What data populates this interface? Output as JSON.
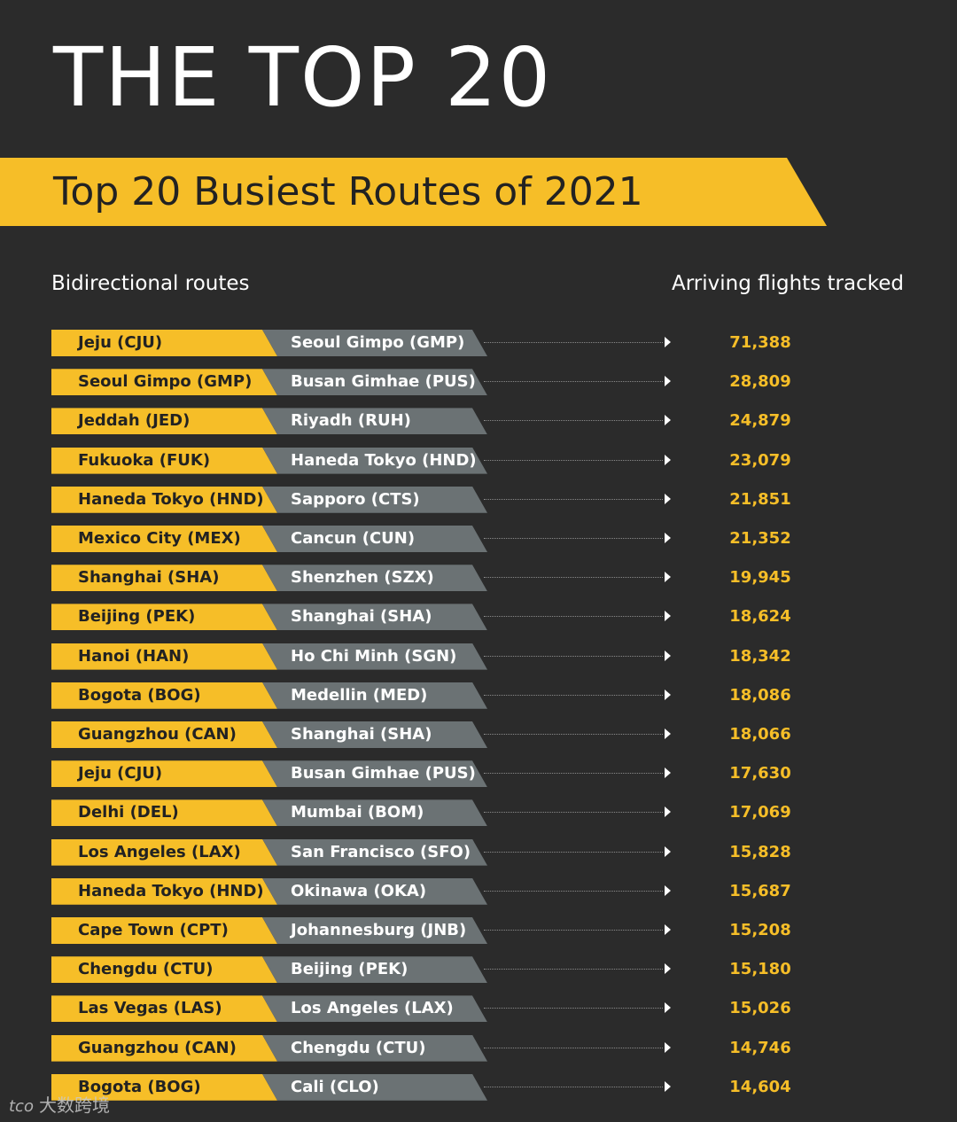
{
  "header": {
    "title": "THE TOP 20",
    "subtitle": "Top 20 Busiest Routes of 2021"
  },
  "columns": {
    "routes_label": "Bidirectional routes",
    "value_label": "Arriving flights tracked"
  },
  "colors": {
    "background": "#2b2b2b",
    "accent_yellow": "#f6be28",
    "destination_grey": "#6b7274",
    "text_white": "#ffffff"
  },
  "chart_data": {
    "type": "table",
    "title": "Top 20 Busiest Routes of 2021",
    "columns": [
      "Bidirectional routes",
      "Arriving flights tracked"
    ],
    "rows": [
      {
        "from": "Jeju (CJU)",
        "to": "Seoul Gimpo (GMP)",
        "flights": "71,388"
      },
      {
        "from": "Seoul Gimpo (GMP)",
        "to": "Busan Gimhae (PUS)",
        "flights": "28,809"
      },
      {
        "from": "Jeddah (JED)",
        "to": "Riyadh (RUH)",
        "flights": "24,879"
      },
      {
        "from": "Fukuoka (FUK)",
        "to": "Haneda Tokyo (HND)",
        "flights": "23,079"
      },
      {
        "from": "Haneda Tokyo (HND)",
        "to": "Sapporo (CTS)",
        "flights": "21,851"
      },
      {
        "from": "Mexico City (MEX)",
        "to": "Cancun (CUN)",
        "flights": "21,352"
      },
      {
        "from": "Shanghai (SHA)",
        "to": "Shenzhen (SZX)",
        "flights": "19,945"
      },
      {
        "from": "Beijing (PEK)",
        "to": "Shanghai (SHA)",
        "flights": "18,624"
      },
      {
        "from": "Hanoi (HAN)",
        "to": "Ho Chi Minh (SGN)",
        "flights": "18,342"
      },
      {
        "from": "Bogota (BOG)",
        "to": "Medellin (MED)",
        "flights": "18,086"
      },
      {
        "from": "Guangzhou (CAN)",
        "to": "Shanghai (SHA)",
        "flights": "18,066"
      },
      {
        "from": "Jeju (CJU)",
        "to": "Busan Gimhae (PUS)",
        "flights": "17,630"
      },
      {
        "from": "Delhi (DEL)",
        "to": "Mumbai (BOM)",
        "flights": "17,069"
      },
      {
        "from": "Los Angeles (LAX)",
        "to": "San Francisco (SFO)",
        "flights": "15,828"
      },
      {
        "from": "Haneda Tokyo (HND)",
        "to": "Okinawa (OKA)",
        "flights": "15,687"
      },
      {
        "from": "Cape Town (CPT)",
        "to": "Johannesburg (JNB)",
        "flights": "15,208"
      },
      {
        "from": "Chengdu (CTU)",
        "to": "Beijing (PEK)",
        "flights": "15,180"
      },
      {
        "from": "Las Vegas (LAS)",
        "to": "Los Angeles (LAX)",
        "flights": "15,026"
      },
      {
        "from": "Guangzhou (CAN)",
        "to": "Chengdu (CTU)",
        "flights": "14,746"
      },
      {
        "from": "Bogota (BOG)",
        "to": "Cali (CLO)",
        "flights": "14,604"
      }
    ]
  },
  "watermark": {
    "mark": "tco",
    "text": "大数跨境"
  }
}
